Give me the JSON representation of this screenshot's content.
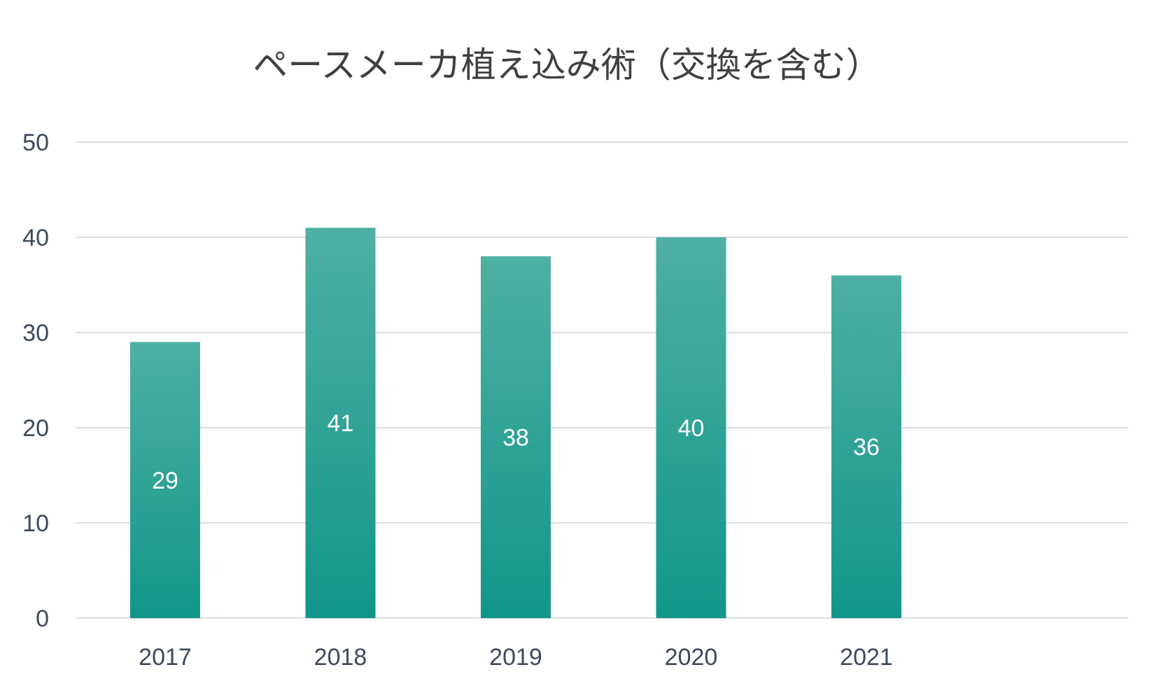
{
  "chart_data": {
    "type": "bar",
    "title": "ペースメーカ植え込み術（交換を含む）",
    "categories": [
      "2017",
      "2018",
      "2019",
      "2020",
      "2021"
    ],
    "values": [
      29,
      41,
      38,
      40,
      36
    ],
    "data_labels": [
      "29",
      "41",
      "38",
      "40",
      "36"
    ],
    "ylim": [
      0,
      50
    ],
    "yticks": [
      "0",
      "10",
      "20",
      "30",
      "40",
      "50"
    ],
    "xlabel": "",
    "ylabel": "",
    "grid": true,
    "legend": "none",
    "colors": {
      "bar_top": "#4eb0a2",
      "bar_bottom": "#12968a"
    }
  }
}
